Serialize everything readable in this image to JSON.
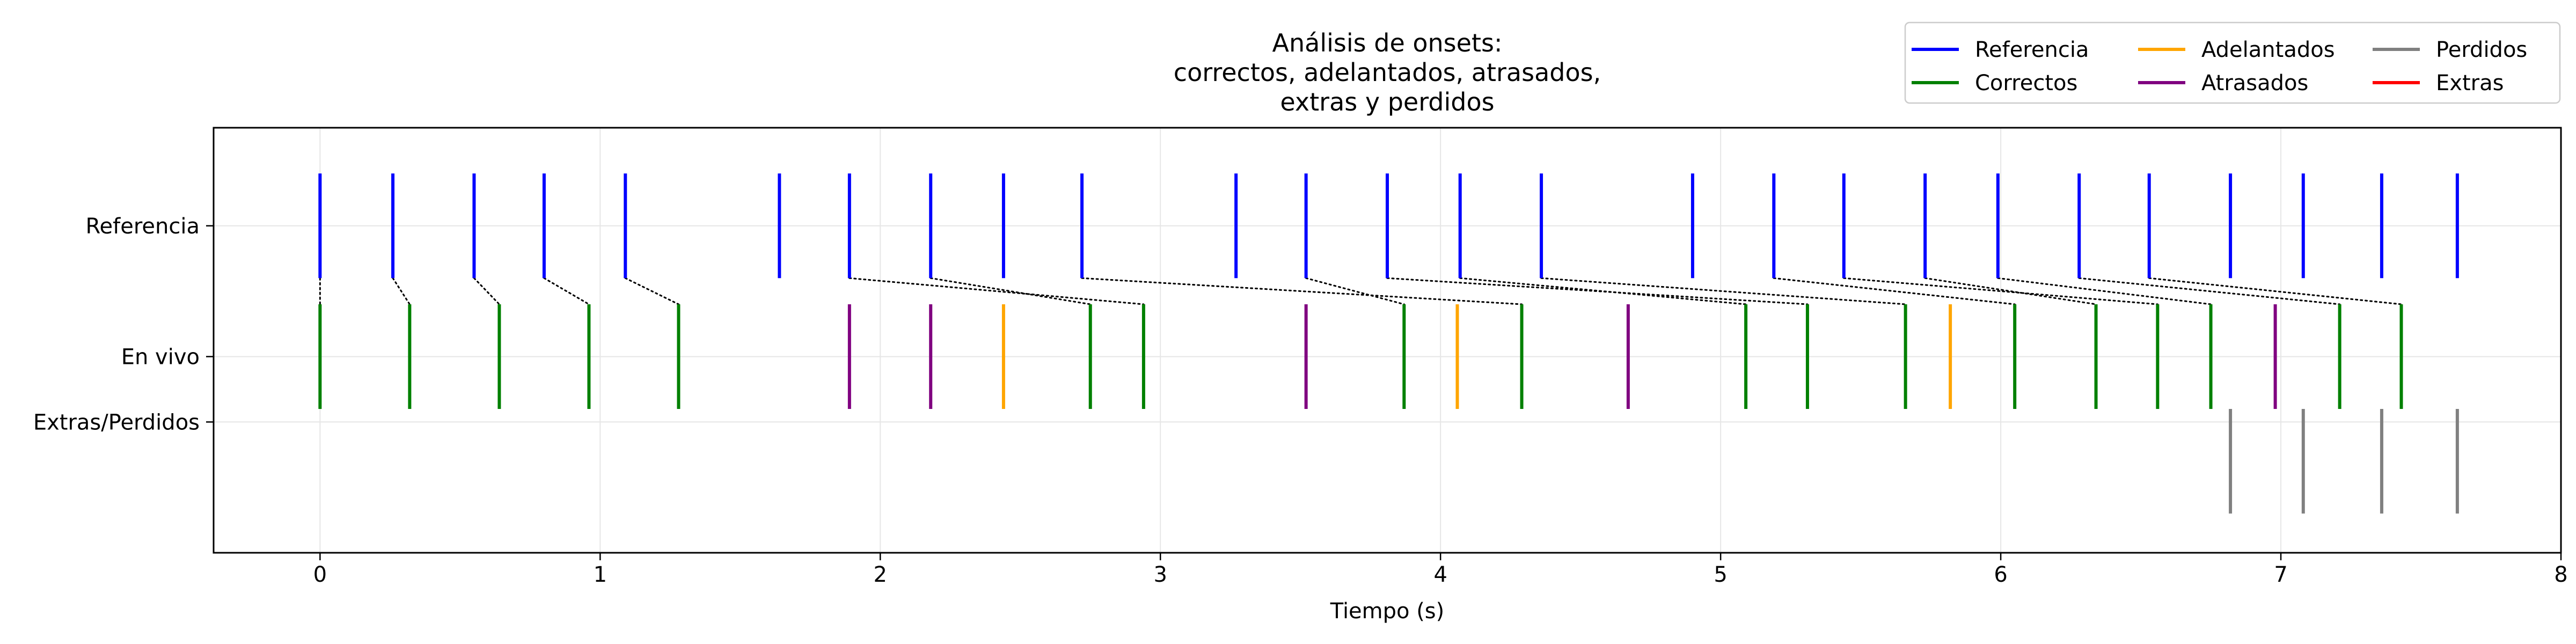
{
  "chart_data": {
    "type": "event-raster",
    "title_lines": [
      "Análisis de onsets:",
      "correctos, adelantados, atrasados,",
      "extras y perdidos"
    ],
    "xlabel": "Tiempo (s)",
    "xlim": [
      -0.38,
      8.0
    ],
    "ylim": [
      0.0,
      3.25
    ],
    "xticks": [
      0,
      1,
      2,
      3,
      4,
      5,
      6,
      7,
      8
    ],
    "yticks": [
      {
        "label": "Referencia",
        "value": 2.5
      },
      {
        "label": "En vivo",
        "value": 1.5
      },
      {
        "label": "Extras/Perdidos",
        "value": 1.0
      }
    ],
    "grid": true,
    "legend": {
      "placement": "upper right, above axes",
      "entries": [
        {
          "key": "reference",
          "label": "Referencia"
        },
        {
          "key": "correct",
          "label": "Correctos"
        },
        {
          "key": "early",
          "label": "Adelantados"
        },
        {
          "key": "late",
          "label": "Atrasados"
        },
        {
          "key": "missed",
          "label": "Perdidos"
        },
        {
          "key": "extra",
          "label": "Extras"
        }
      ]
    },
    "colors": {
      "reference": "#0000ff",
      "correct": "#008000",
      "early": "#ffa500",
      "late": "#800080",
      "missed": "#808080",
      "extra": "#ff0000",
      "matchline": "#000000"
    },
    "reference_onsets": [
      0.0,
      0.26,
      0.55,
      0.8,
      1.09,
      1.64,
      1.89,
      2.18,
      2.44,
      2.72,
      3.27,
      3.52,
      3.81,
      4.07,
      4.36,
      4.9,
      5.19,
      5.44,
      5.73,
      5.99,
      6.28,
      6.53,
      6.82,
      7.08,
      7.36,
      7.63
    ],
    "live_onsets": [
      {
        "t": 0.0,
        "cat": "correct"
      },
      {
        "t": 0.32,
        "cat": "correct"
      },
      {
        "t": 0.64,
        "cat": "correct"
      },
      {
        "t": 0.96,
        "cat": "correct"
      },
      {
        "t": 1.28,
        "cat": "correct"
      },
      {
        "t": 1.89,
        "cat": "late"
      },
      {
        "t": 2.18,
        "cat": "late"
      },
      {
        "t": 2.44,
        "cat": "early"
      },
      {
        "t": 2.75,
        "cat": "correct"
      },
      {
        "t": 2.94,
        "cat": "correct"
      },
      {
        "t": 3.52,
        "cat": "late"
      },
      {
        "t": 3.87,
        "cat": "correct"
      },
      {
        "t": 4.06,
        "cat": "early"
      },
      {
        "t": 4.29,
        "cat": "correct"
      },
      {
        "t": 4.67,
        "cat": "late"
      },
      {
        "t": 5.09,
        "cat": "correct"
      },
      {
        "t": 5.31,
        "cat": "correct"
      },
      {
        "t": 5.66,
        "cat": "correct"
      },
      {
        "t": 5.82,
        "cat": "early"
      },
      {
        "t": 6.05,
        "cat": "correct"
      },
      {
        "t": 6.34,
        "cat": "correct"
      },
      {
        "t": 6.56,
        "cat": "correct"
      },
      {
        "t": 6.75,
        "cat": "correct"
      },
      {
        "t": 6.98,
        "cat": "late"
      },
      {
        "t": 7.21,
        "cat": "correct"
      },
      {
        "t": 7.43,
        "cat": "correct"
      }
    ],
    "missed_onsets": [
      6.82,
      7.08,
      7.36,
      7.63
    ],
    "extra_onsets": [],
    "matches": [
      [
        0.0,
        0.0
      ],
      [
        0.26,
        0.32
      ],
      [
        0.55,
        0.64
      ],
      [
        0.8,
        0.96
      ],
      [
        1.09,
        1.28
      ],
      [
        1.89,
        2.94
      ],
      [
        2.18,
        2.75
      ],
      [
        2.72,
        4.29
      ],
      [
        3.52,
        3.87
      ],
      [
        3.81,
        5.31
      ],
      [
        4.07,
        5.09
      ],
      [
        4.36,
        5.66
      ],
      [
        5.19,
        6.05
      ],
      [
        5.44,
        6.56
      ],
      [
        5.73,
        6.34
      ],
      [
        5.99,
        6.75
      ],
      [
        6.28,
        7.21
      ],
      [
        6.53,
        7.43
      ]
    ]
  }
}
